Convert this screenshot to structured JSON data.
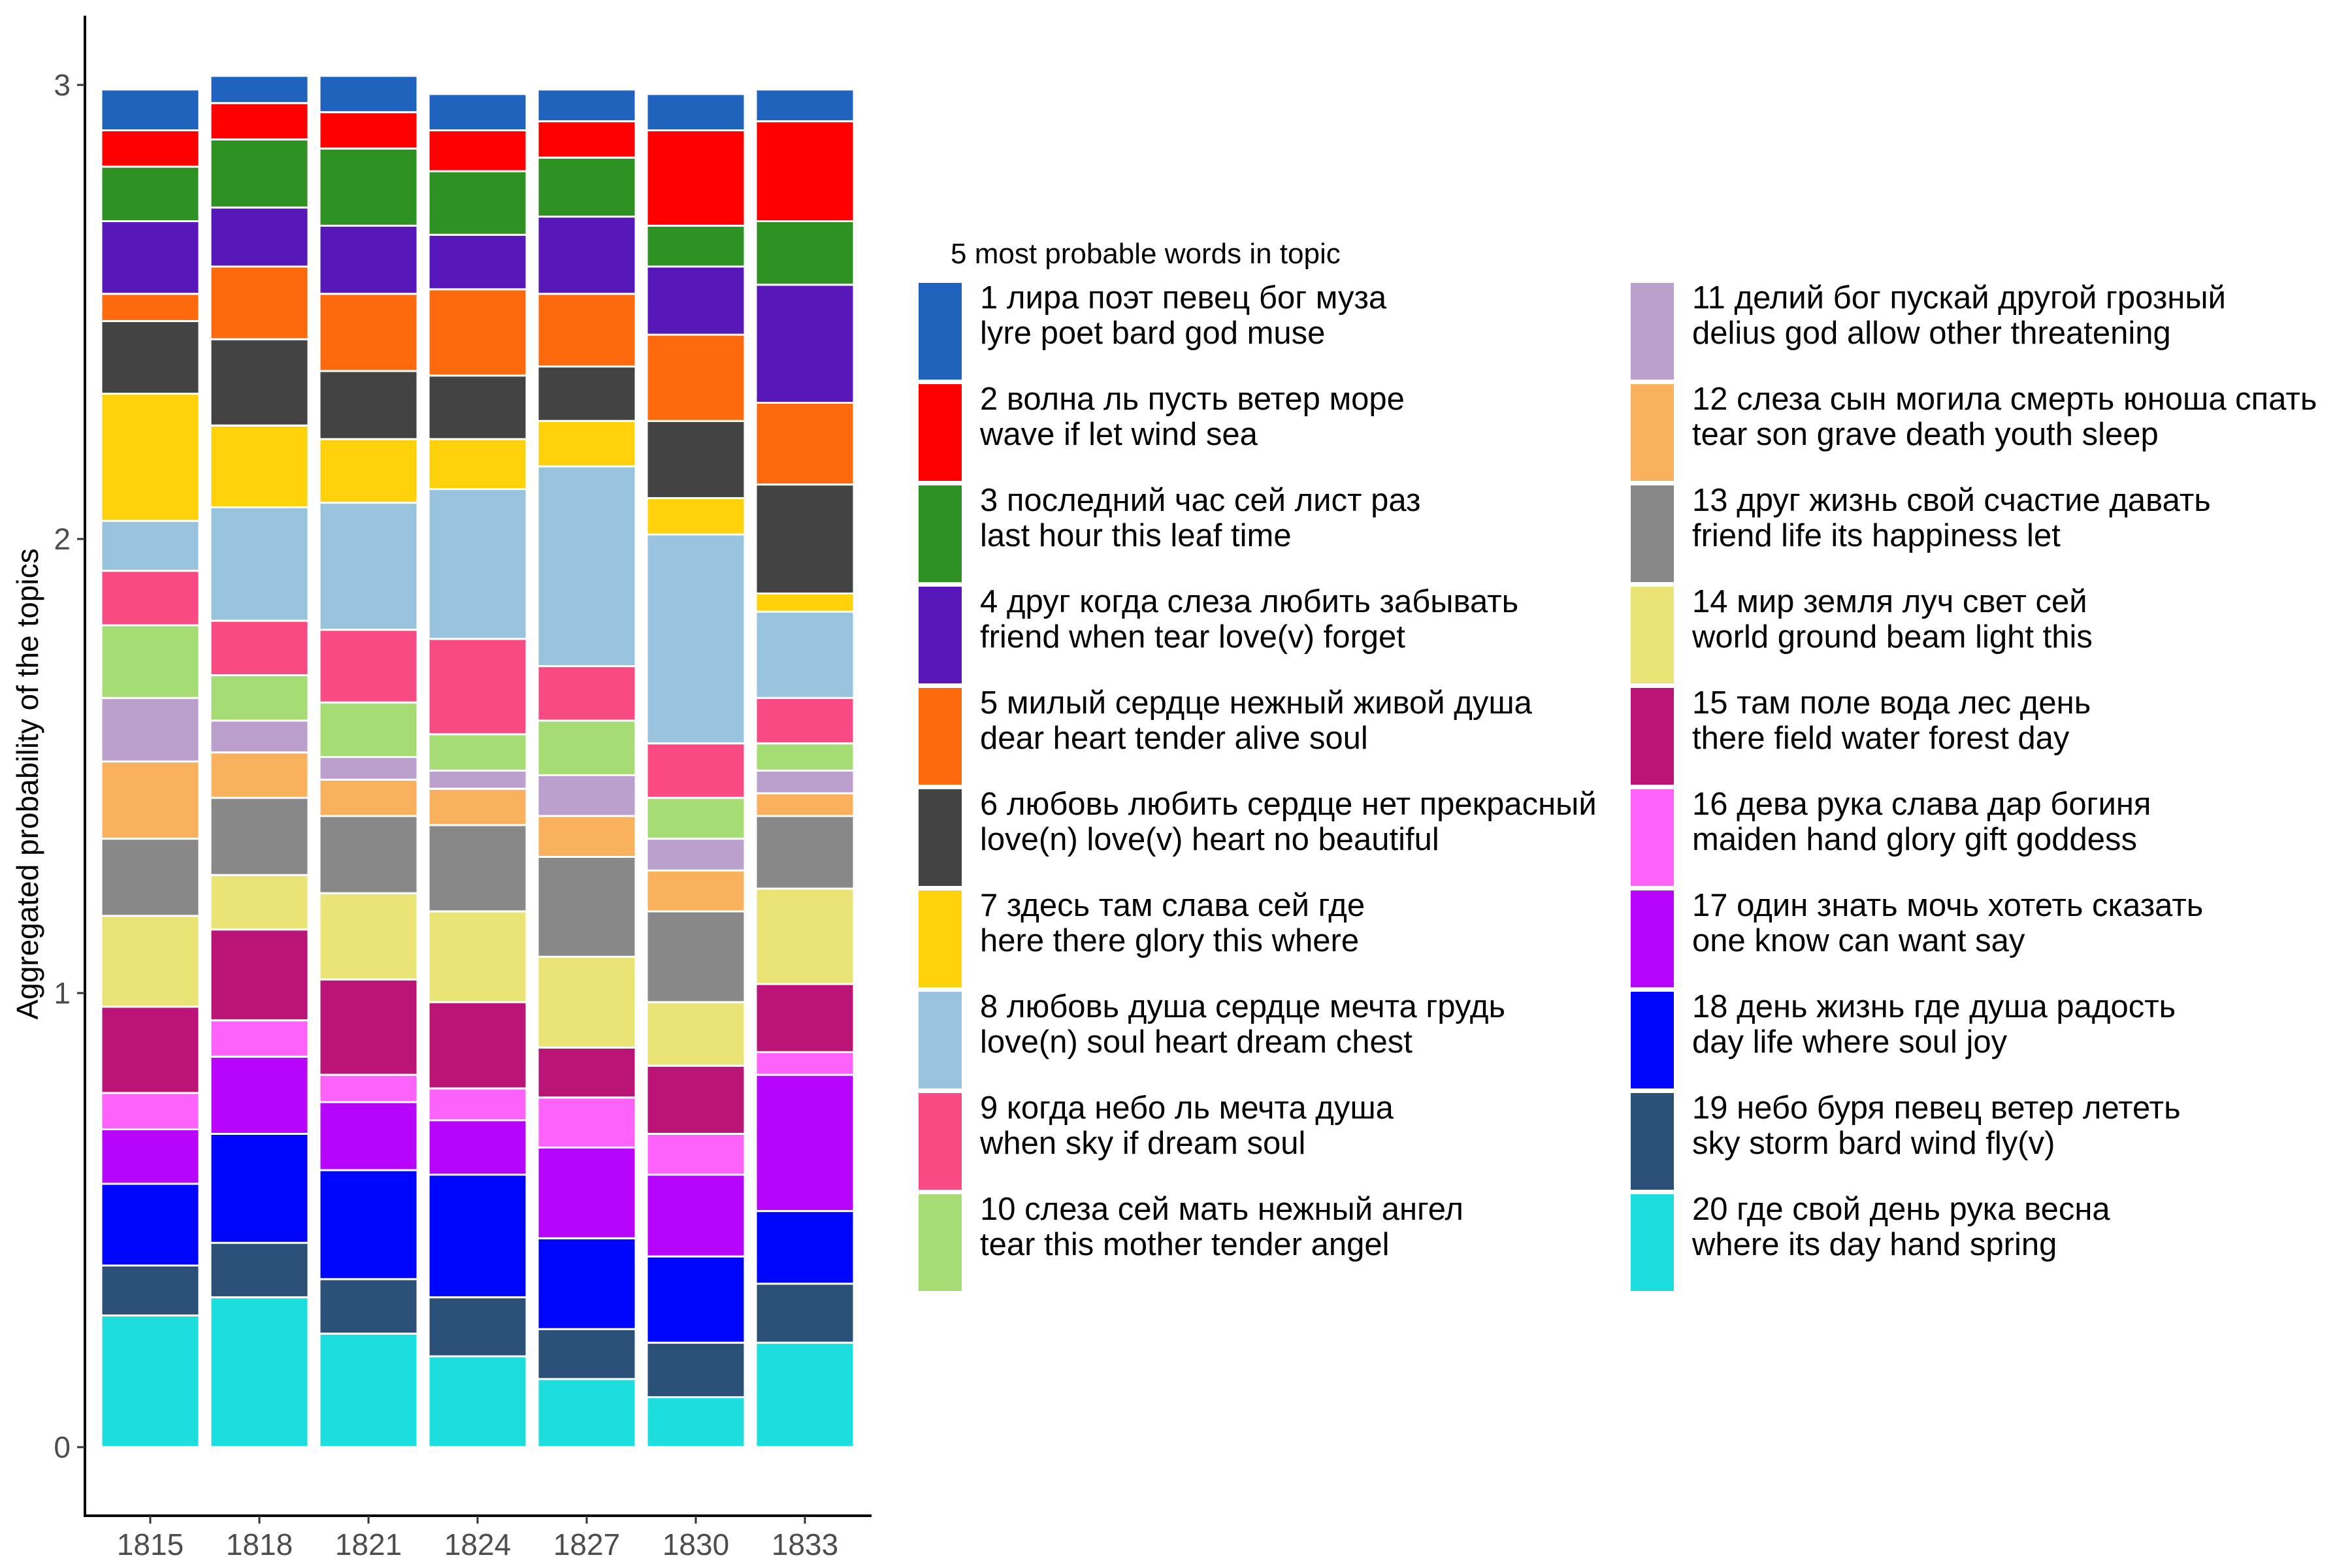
{
  "chart_data": {
    "type": "bar",
    "stacked": true,
    "ylabel": "Aggregated probability of the topics",
    "xlabel": "",
    "ylim": [
      0,
      3
    ],
    "yticks": [
      "0",
      "1",
      "2",
      "3"
    ],
    "grid": false,
    "legend_position": "right",
    "legend_title": "5 most probable words in topic",
    "categories": [
      "1815",
      "1818",
      "1821",
      "1824",
      "1827",
      "1830",
      "1833"
    ],
    "series": [
      {
        "name": "1 лира поэт певец бог муза",
        "name_en": "lyre poet bard god muse",
        "color": "#1f63bf",
        "values": [
          0.09,
          0.06,
          0.08,
          0.08,
          0.07,
          0.08,
          0.07
        ]
      },
      {
        "name": "2 волна ль пусть ветер море",
        "name_en": "wave if let wind sea",
        "color": "#fe0000",
        "values": [
          0.08,
          0.08,
          0.08,
          0.09,
          0.08,
          0.21,
          0.22
        ]
      },
      {
        "name": "3 последний час сей лист раз",
        "name_en": "last hour this leaf time",
        "color": "#2d9222",
        "values": [
          0.12,
          0.15,
          0.17,
          0.14,
          0.13,
          0.09,
          0.14
        ]
      },
      {
        "name": "4 друг когда слеза любить забывать",
        "name_en": "friend when tear love(v) forget",
        "color": "#5817b8",
        "values": [
          0.16,
          0.13,
          0.15,
          0.12,
          0.17,
          0.15,
          0.26
        ]
      },
      {
        "name": "5 милый сердце нежный живой душа",
        "name_en": "dear heart tender alive soul",
        "color": "#fd6a0d",
        "values": [
          0.06,
          0.16,
          0.17,
          0.19,
          0.16,
          0.19,
          0.18
        ]
      },
      {
        "name": "6 любовь любить сердце нет прекрасный",
        "name_en": "love(n) love(v) heart no beautiful",
        "color": "#434343",
        "values": [
          0.16,
          0.19,
          0.15,
          0.14,
          0.12,
          0.17,
          0.24
        ]
      },
      {
        "name": "7 здесь там слава сей где",
        "name_en": "here there glory this where",
        "color": "#fed10a",
        "values": [
          0.28,
          0.18,
          0.14,
          0.11,
          0.1,
          0.08,
          0.04
        ]
      },
      {
        "name": "8 любовь душа сердце мечта грудь",
        "name_en": "love(n) soul heart dream chest",
        "color": "#97c3dd",
        "values": [
          0.11,
          0.25,
          0.28,
          0.33,
          0.44,
          0.46,
          0.19
        ]
      },
      {
        "name": "9 когда небо ль мечта душа",
        "name_en": "when sky if dream soul",
        "color": "#f84a83",
        "values": [
          0.12,
          0.12,
          0.16,
          0.21,
          0.12,
          0.12,
          0.1
        ]
      },
      {
        "name": "10 слеза сей мать нежный ангел",
        "name_en": "tear this mother tender angel",
        "color": "#a5dc73",
        "values": [
          0.16,
          0.1,
          0.12,
          0.08,
          0.12,
          0.09,
          0.06
        ]
      },
      {
        "name": "11 делий бог пускай другой грозный",
        "name_en": "delius god allow other threatening",
        "color": "#bb9fcd",
        "values": [
          0.14,
          0.07,
          0.05,
          0.04,
          0.09,
          0.07,
          0.05
        ]
      },
      {
        "name": "12 слеза сын могила смерть юноша спать",
        "name_en": "tear son grave death youth sleep",
        "color": "#f9b15d",
        "values": [
          0.17,
          0.1,
          0.08,
          0.08,
          0.09,
          0.09,
          0.05
        ]
      },
      {
        "name": "13 друг жизнь свой счастие давать",
        "name_en": "friend life its happiness let",
        "color": "#888888",
        "values": [
          0.17,
          0.17,
          0.17,
          0.19,
          0.22,
          0.2,
          0.16
        ]
      },
      {
        "name": "14 мир земля луч свет сей",
        "name_en": "world ground beam light this",
        "color": "#eae375",
        "values": [
          0.2,
          0.12,
          0.19,
          0.2,
          0.2,
          0.14,
          0.21
        ]
      },
      {
        "name": "15 там поле вода лес день",
        "name_en": "there field water forest day",
        "color": "#ba1477",
        "values": [
          0.19,
          0.2,
          0.21,
          0.19,
          0.11,
          0.15,
          0.15
        ]
      },
      {
        "name": "16 дева рука слава дар богиня",
        "name_en": "maiden hand glory gift goddess",
        "color": "#fd62fb",
        "values": [
          0.08,
          0.08,
          0.06,
          0.07,
          0.11,
          0.09,
          0.05
        ]
      },
      {
        "name": "17 один знать мочь хотеть сказать",
        "name_en": "one know can want say",
        "color": "#b705fb",
        "values": [
          0.12,
          0.17,
          0.15,
          0.12,
          0.2,
          0.18,
          0.3
        ]
      },
      {
        "name": "18 день жизнь где душа радость",
        "name_en": "day life where soul joy",
        "color": "#0006fb",
        "values": [
          0.18,
          0.24,
          0.24,
          0.27,
          0.2,
          0.19,
          0.16
        ]
      },
      {
        "name": "19 небо буря певец ветер лететь",
        "name_en": "sky storm bard wind fly(v)",
        "color": "#2b5179",
        "values": [
          0.11,
          0.12,
          0.12,
          0.13,
          0.11,
          0.12,
          0.13
        ]
      },
      {
        "name": "20 где свой день рука весна",
        "name_en": "where its day hand spring",
        "color": "#1ddedf",
        "values": [
          0.29,
          0.33,
          0.25,
          0.2,
          0.15,
          0.11,
          0.23
        ]
      }
    ]
  }
}
